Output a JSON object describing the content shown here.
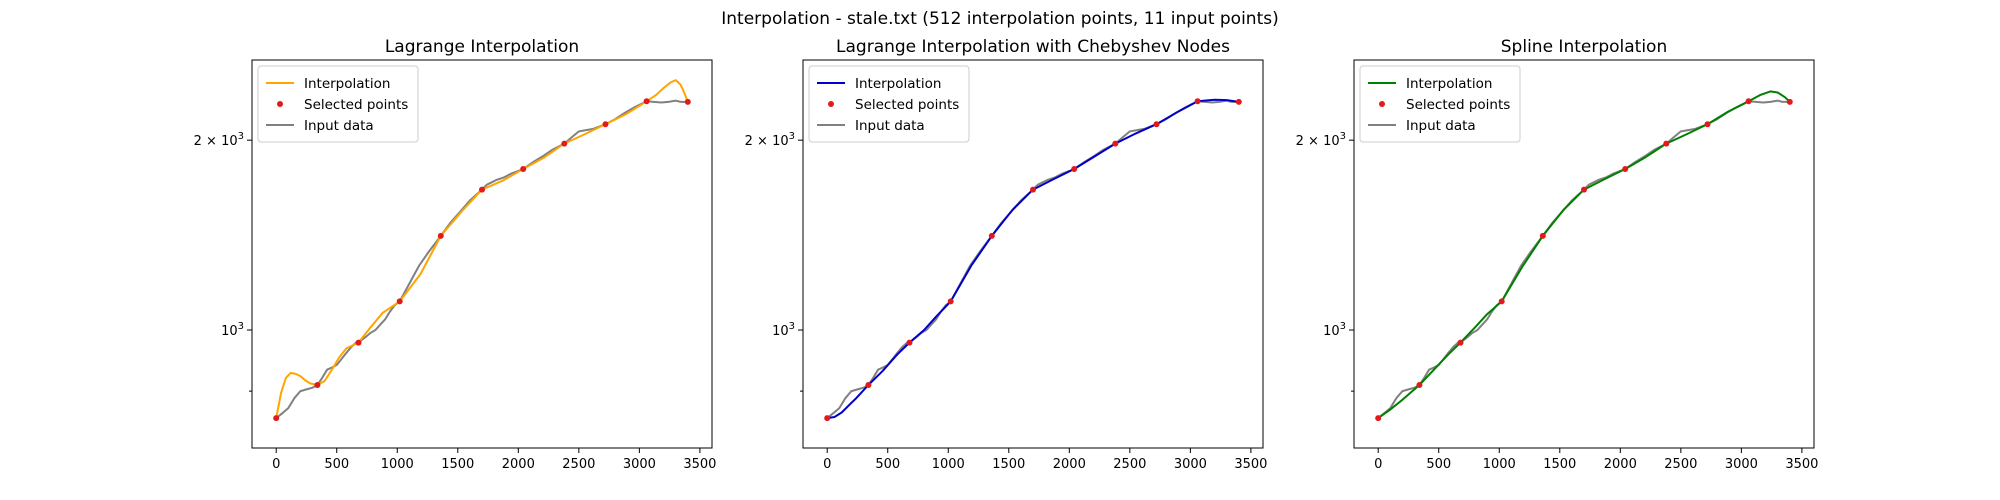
{
  "figure": {
    "title": "Interpolation - stale.txt (512 interpolation points, 11 input points)"
  },
  "chart_data": [
    {
      "type": "line",
      "title": "Lagrange Interpolation",
      "xlabel": "",
      "ylabel": "",
      "xlim": [
        -200,
        3600
      ],
      "ylim": [
        650,
        2680
      ],
      "yscale": "log",
      "x_ticks": [
        0,
        500,
        1000,
        1500,
        2000,
        2500,
        3000,
        3500
      ],
      "y_major_ticks": [
        {
          "value": 1000,
          "base": "10",
          "exp": "3"
        },
        {
          "value": 2000,
          "coef": "2",
          "base": "10",
          "exp": "3"
        }
      ],
      "y_minor_ticks": [
        800
      ],
      "grid": false,
      "legend_position": "upper-left",
      "legend": [
        "Interpolation",
        "Selected points",
        "Input data"
      ],
      "colors": {
        "interpolation": "#ffa500",
        "points": "#e31a1c",
        "input": "#808080"
      },
      "input_data": {
        "x": [
          0,
          50,
          100,
          150,
          200,
          250,
          300,
          340,
          380,
          420,
          460,
          500,
          540,
          580,
          620,
          660,
          700,
          740,
          780,
          820,
          860,
          900,
          940,
          980,
          1020,
          1100,
          1180,
          1260,
          1360,
          1440,
          1520,
          1600,
          1700,
          1740,
          1780,
          1820,
          1880,
          1940,
          2040,
          2120,
          2200,
          2280,
          2380,
          2440,
          2500,
          2560,
          2620,
          2720,
          2800,
          2880,
          2960,
          3060,
          3120,
          3180,
          3240,
          3300,
          3340,
          3400
        ],
        "y": [
          725,
          738,
          752,
          780,
          800,
          805,
          810,
          818,
          840,
          865,
          872,
          880,
          900,
          920,
          940,
          955,
          962,
          975,
          990,
          1000,
          1020,
          1040,
          1070,
          1095,
          1110,
          1185,
          1265,
          1330,
          1410,
          1480,
          1540,
          1605,
          1670,
          1700,
          1715,
          1730,
          1745,
          1770,
          1800,
          1845,
          1885,
          1930,
          1975,
          2020,
          2065,
          2075,
          2085,
          2120,
          2160,
          2210,
          2255,
          2305,
          2300,
          2295,
          2300,
          2310,
          2300,
          2300
        ]
      },
      "selected_points": {
        "x": [
          0,
          340,
          680,
          1020,
          1360,
          1700,
          2040,
          2380,
          2720,
          3060,
          3400
        ],
        "y": [
          725,
          818,
          955,
          1110,
          1410,
          1670,
          1800,
          1975,
          2120,
          2305,
          2300
        ]
      },
      "interpolation": {
        "x": [
          0,
          40,
          80,
          120,
          160,
          200,
          240,
          280,
          340,
          400,
          460,
          520,
          580,
          680,
          780,
          880,
          1020,
          1190,
          1360,
          1530,
          1700,
          1870,
          2040,
          2210,
          2380,
          2550,
          2720,
          2890,
          3060,
          3140,
          3200,
          3260,
          3300,
          3340,
          3370,
          3400
        ],
        "y": [
          725,
          795,
          840,
          855,
          852,
          845,
          832,
          823,
          818,
          830,
          865,
          905,
          935,
          955,
          1010,
          1065,
          1110,
          1225,
          1410,
          1540,
          1670,
          1725,
          1800,
          1875,
          1975,
          2045,
          2120,
          2200,
          2305,
          2360,
          2420,
          2470,
          2490,
          2450,
          2380,
          2300
        ]
      }
    },
    {
      "type": "line",
      "title": "Lagrange Interpolation with Chebyshev Nodes",
      "xlabel": "",
      "ylabel": "",
      "xlim": [
        -200,
        3600
      ],
      "ylim": [
        650,
        2680
      ],
      "yscale": "log",
      "x_ticks": [
        0,
        500,
        1000,
        1500,
        2000,
        2500,
        3000,
        3500
      ],
      "y_major_ticks": [
        {
          "value": 1000,
          "base": "10",
          "exp": "3"
        },
        {
          "value": 2000,
          "coef": "2",
          "base": "10",
          "exp": "3"
        }
      ],
      "y_minor_ticks": [
        800
      ],
      "grid": false,
      "legend_position": "upper-left",
      "legend": [
        "Interpolation",
        "Selected points",
        "Input data"
      ],
      "colors": {
        "interpolation": "#0000cc",
        "points": "#e31a1c",
        "input": "#808080"
      },
      "input_data": {
        "x": [
          0,
          50,
          100,
          150,
          200,
          250,
          300,
          340,
          380,
          420,
          460,
          500,
          540,
          580,
          620,
          660,
          700,
          740,
          780,
          820,
          860,
          900,
          940,
          980,
          1020,
          1100,
          1180,
          1260,
          1360,
          1440,
          1520,
          1600,
          1700,
          1740,
          1780,
          1820,
          1880,
          1940,
          2040,
          2120,
          2200,
          2280,
          2380,
          2440,
          2500,
          2560,
          2620,
          2720,
          2800,
          2880,
          2960,
          3060,
          3120,
          3180,
          3240,
          3300,
          3340,
          3400
        ],
        "y": [
          725,
          738,
          752,
          780,
          800,
          805,
          810,
          818,
          840,
          865,
          872,
          880,
          900,
          920,
          940,
          955,
          962,
          975,
          990,
          1000,
          1020,
          1040,
          1070,
          1095,
          1110,
          1185,
          1265,
          1330,
          1410,
          1480,
          1540,
          1605,
          1670,
          1700,
          1715,
          1730,
          1745,
          1770,
          1800,
          1845,
          1885,
          1930,
          1975,
          2020,
          2065,
          2075,
          2085,
          2120,
          2160,
          2210,
          2255,
          2305,
          2300,
          2295,
          2300,
          2310,
          2300,
          2300
        ]
      },
      "selected_points": {
        "x": [
          0,
          340,
          680,
          1020,
          1360,
          1700,
          2040,
          2380,
          2720,
          3060,
          3400
        ],
        "y": [
          725,
          818,
          955,
          1110,
          1410,
          1670,
          1800,
          1975,
          2120,
          2305,
          2300
        ]
      },
      "interpolation": {
        "x": [
          0,
          60,
          120,
          180,
          240,
          340,
          460,
          580,
          680,
          800,
          900,
          1020,
          1190,
          1360,
          1530,
          1700,
          1870,
          2040,
          2210,
          2380,
          2550,
          2720,
          2890,
          3060,
          3200,
          3300,
          3400
        ],
        "y": [
          725,
          728,
          740,
          760,
          780,
          818,
          862,
          915,
          955,
          1000,
          1050,
          1110,
          1265,
          1410,
          1550,
          1670,
          1735,
          1800,
          1885,
          1975,
          2050,
          2120,
          2215,
          2305,
          2318,
          2315,
          2300
        ]
      }
    },
    {
      "type": "line",
      "title": "Spline Interpolation",
      "xlabel": "",
      "ylabel": "",
      "xlim": [
        -200,
        3600
      ],
      "ylim": [
        650,
        2680
      ],
      "yscale": "log",
      "x_ticks": [
        0,
        500,
        1000,
        1500,
        2000,
        2500,
        3000,
        3500
      ],
      "y_major_ticks": [
        {
          "value": 1000,
          "base": "10",
          "exp": "3"
        },
        {
          "value": 2000,
          "coef": "2",
          "base": "10",
          "exp": "3"
        }
      ],
      "y_minor_ticks": [
        800
      ],
      "grid": false,
      "legend_position": "upper-left",
      "legend": [
        "Interpolation",
        "Selected points",
        "Input data"
      ],
      "colors": {
        "interpolation": "#008000",
        "points": "#e31a1c",
        "input": "#808080"
      },
      "input_data": {
        "x": [
          0,
          50,
          100,
          150,
          200,
          250,
          300,
          340,
          380,
          420,
          460,
          500,
          540,
          580,
          620,
          660,
          700,
          740,
          780,
          820,
          860,
          900,
          940,
          980,
          1020,
          1100,
          1180,
          1260,
          1360,
          1440,
          1520,
          1600,
          1700,
          1740,
          1780,
          1820,
          1880,
          1940,
          2040,
          2120,
          2200,
          2280,
          2380,
          2440,
          2500,
          2560,
          2620,
          2720,
          2800,
          2880,
          2960,
          3060,
          3120,
          3180,
          3240,
          3300,
          3340,
          3400
        ],
        "y": [
          725,
          738,
          752,
          780,
          800,
          805,
          810,
          818,
          840,
          865,
          872,
          880,
          900,
          920,
          940,
          955,
          962,
          975,
          990,
          1000,
          1020,
          1040,
          1070,
          1095,
          1110,
          1185,
          1265,
          1330,
          1410,
          1480,
          1540,
          1605,
          1670,
          1700,
          1715,
          1730,
          1745,
          1770,
          1800,
          1845,
          1885,
          1930,
          1975,
          2020,
          2065,
          2075,
          2085,
          2120,
          2160,
          2210,
          2255,
          2305,
          2300,
          2295,
          2300,
          2310,
          2300,
          2300
        ]
      },
      "selected_points": {
        "x": [
          0,
          340,
          680,
          1020,
          1360,
          1700,
          2040,
          2380,
          2720,
          3060,
          3400
        ],
        "y": [
          725,
          818,
          955,
          1110,
          1410,
          1670,
          1800,
          1975,
          2120,
          2305,
          2300
        ]
      },
      "interpolation": {
        "x": [
          0,
          100,
          200,
          340,
          460,
          580,
          680,
          800,
          900,
          1020,
          1190,
          1360,
          1530,
          1700,
          1870,
          2040,
          2210,
          2380,
          2550,
          2720,
          2890,
          3060,
          3160,
          3240,
          3300,
          3360,
          3400
        ],
        "y": [
          725,
          748,
          775,
          818,
          865,
          915,
          955,
          1010,
          1060,
          1110,
          1260,
          1410,
          1550,
          1670,
          1735,
          1800,
          1880,
          1975,
          2045,
          2120,
          2220,
          2305,
          2360,
          2390,
          2380,
          2340,
          2300
        ]
      }
    }
  ]
}
